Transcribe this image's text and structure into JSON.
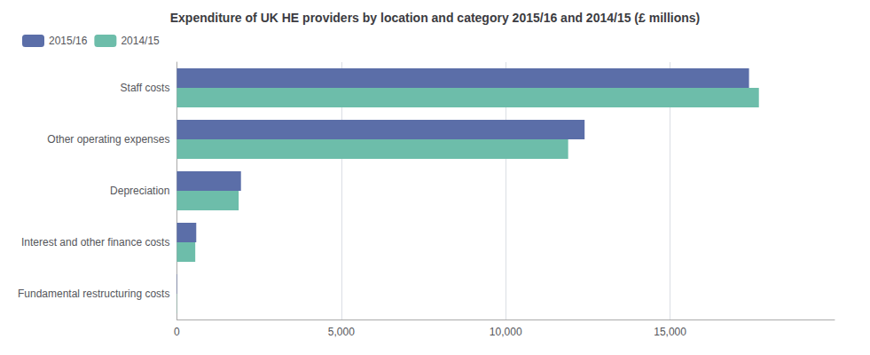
{
  "chart_data": {
    "type": "bar",
    "orientation": "horizontal",
    "title": "Expenditure of UK HE providers by location and category 2015/16 and 2014/15 (£ millions)",
    "categories": [
      "Staff costs",
      "Other operating expenses",
      "Depreciation",
      "Interest and other finance costs",
      "Fundamental restructuring costs"
    ],
    "series": [
      {
        "name": "2015/16",
        "color": "#5b6ea8",
        "values": [
          17400,
          12400,
          1950,
          590,
          12
        ]
      },
      {
        "name": "2014/15",
        "color": "#6dbdaa",
        "values": [
          17700,
          11900,
          1880,
          560,
          8
        ]
      }
    ],
    "xlim": [
      0,
      20000
    ],
    "xticks": [
      0,
      {
        "value": 5000,
        "label": "5,000"
      },
      {
        "value": 10000,
        "label": "10,000"
      },
      {
        "value": 15000,
        "label": "15,000"
      }
    ],
    "grid": true,
    "legend": "upper left"
  }
}
